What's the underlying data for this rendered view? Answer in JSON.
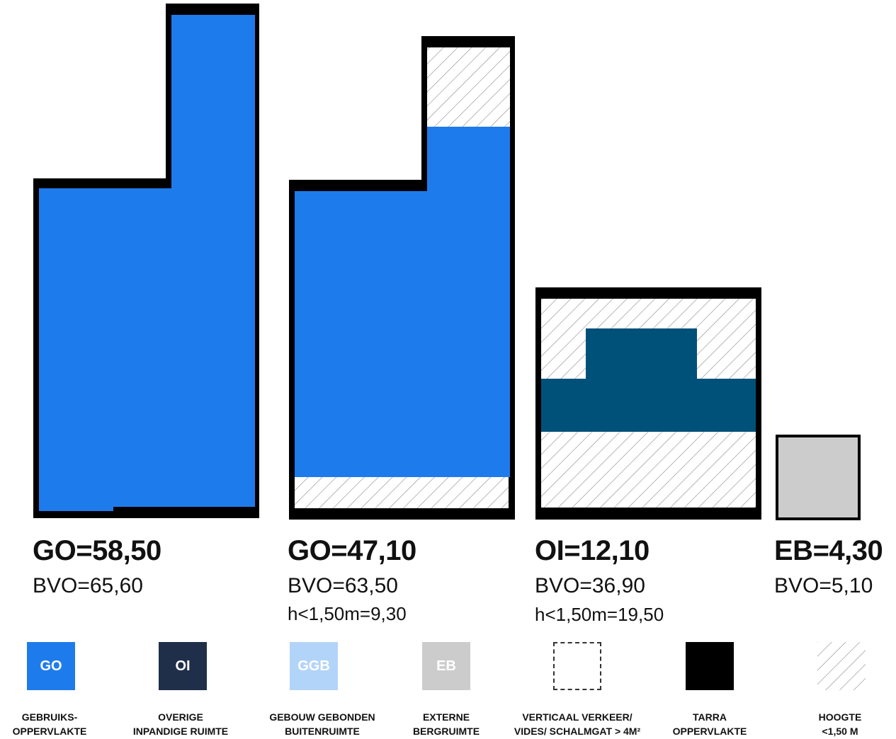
{
  "colors": {
    "go": "#1e7bec",
    "oi": "#005179",
    "oi_legend": "#1f2f4a",
    "ggb": "#b3d4f9",
    "eb": "#cccccc",
    "tarra": "#000000",
    "hatch": "#8a8a8a"
  },
  "blocks": [
    {
      "title": "GO=58,50",
      "bvo": "BVO=65,60",
      "extra": ""
    },
    {
      "title": "GO=47,10",
      "bvo": "BVO=63,50",
      "extra": "h<1,50m=9,30"
    },
    {
      "title": "OI=12,10",
      "bvo": "BVO=36,90",
      "extra": "h<1,50m=19,50"
    },
    {
      "title": "EB=4,30",
      "bvo": "BVO=5,10",
      "extra": ""
    }
  ],
  "legend": [
    {
      "code": "GO",
      "line1": "GEBRUIKS-",
      "line2": "OPPERVLAKTE"
    },
    {
      "code": "OI",
      "line1": "OVERIGE",
      "line2": "INPANDIGE RUIMTE"
    },
    {
      "code": "GGB",
      "line1": "GEBOUW GEBONDEN",
      "line2": "BUITENRUIMTE"
    },
    {
      "code": "EB",
      "line1": "EXTERNE",
      "line2": "BERGRUIMTE"
    },
    {
      "code": "",
      "line1": "VERTICAAL VERKEER/",
      "line2": "VIDES/ SCHALMGAT > 4M²"
    },
    {
      "code": "",
      "line1": "TARRA",
      "line2": "OPPERVLAKTE"
    },
    {
      "code": "",
      "line1": "HOOGTE",
      "line2": "<1,50 M"
    }
  ]
}
